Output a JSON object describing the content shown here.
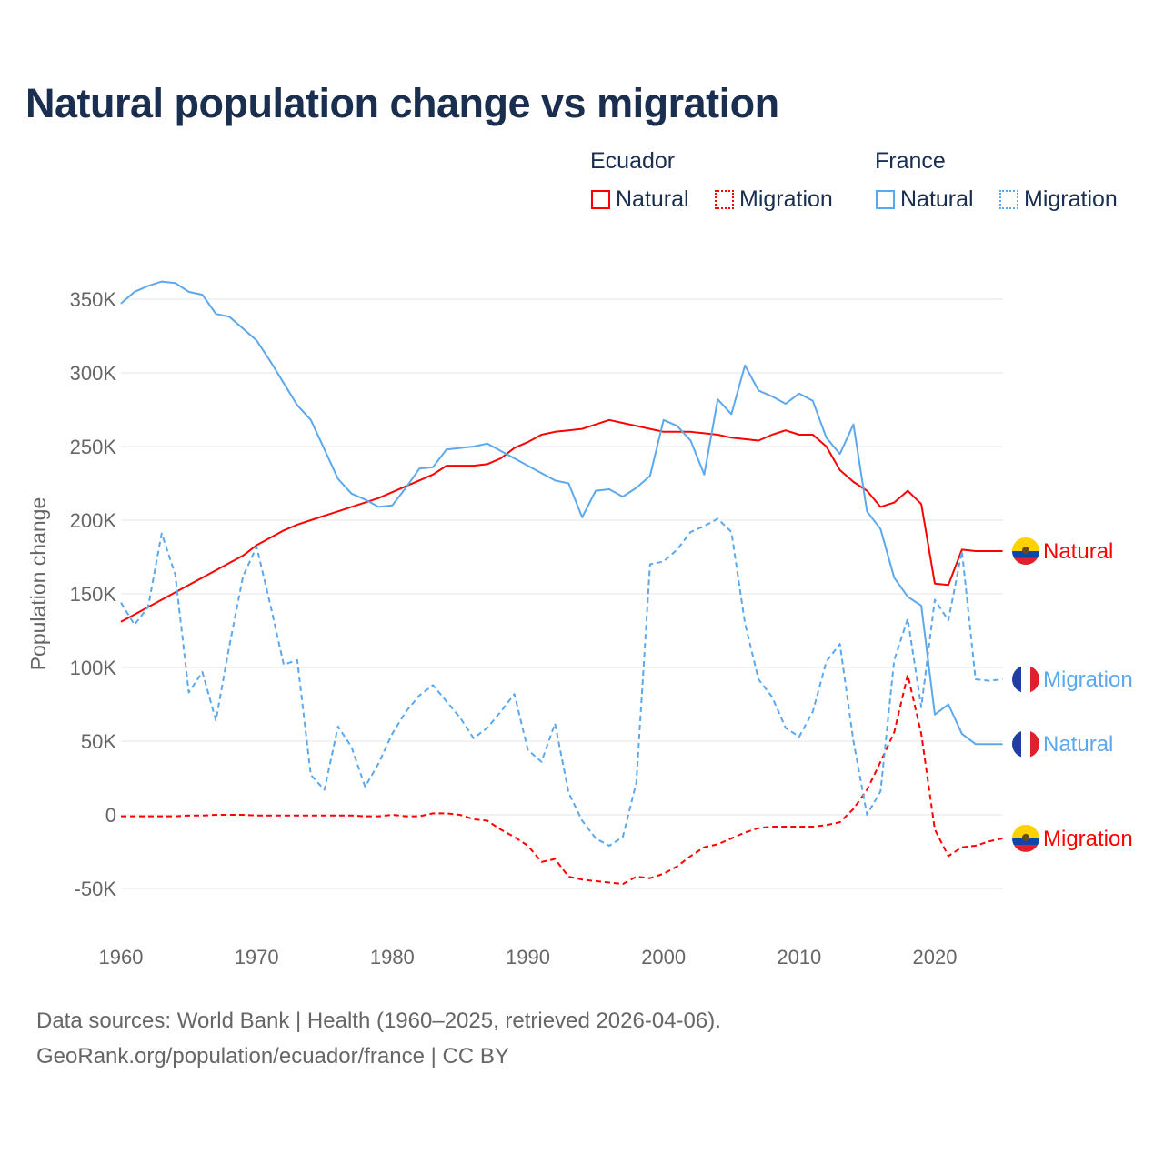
{
  "title": "Natural population change vs migration",
  "legend": {
    "groups": [
      {
        "country": "Ecuador",
        "items": [
          "Natural",
          "Migration"
        ]
      },
      {
        "country": "France",
        "items": [
          "Natural",
          "Migration"
        ]
      }
    ]
  },
  "footer": {
    "line1": "Data sources: World Bank | Health (1960–2025, retrieved 2026-04-06).",
    "line2": "GeoRank.org/population/ecuador/france | CC BY"
  },
  "colors": {
    "ecuador": "#ff0000",
    "france": "#5ca8ec"
  },
  "chart_data": {
    "type": "line",
    "title": "Natural population change vs migration",
    "xlabel": "",
    "ylabel": "Population change",
    "xlim": [
      1960,
      2025
    ],
    "ylim": [
      -70000,
      380000
    ],
    "x_ticks": [
      1960,
      1970,
      1980,
      1990,
      2000,
      2010,
      2020
    ],
    "x_tick_labels": [
      "1960",
      "1970",
      "1980",
      "1990",
      "2000",
      "2010",
      "2020"
    ],
    "y_ticks": [
      -50000,
      0,
      50000,
      100000,
      150000,
      200000,
      250000,
      300000,
      350000
    ],
    "y_tick_labels": [
      "-50K",
      "0",
      "50K",
      "100K",
      "150K",
      "200K",
      "250K",
      "300K",
      "350K"
    ],
    "grid": true,
    "x_start": 1960,
    "series": [
      {
        "name": "Ecuador Natural",
        "country": "ecuador",
        "end_label": "Natural",
        "style": "solid",
        "values_k": [
          131,
          136,
          141,
          146,
          151,
          156,
          161,
          166,
          171,
          176,
          183,
          188,
          193,
          197,
          200,
          203,
          206,
          209,
          212,
          215,
          219,
          223,
          227,
          231,
          237,
          237,
          237,
          238,
          242,
          249,
          253,
          258,
          260,
          261,
          262,
          265,
          268,
          266,
          264,
          262,
          260,
          260,
          260,
          259,
          258,
          256,
          255,
          254,
          258,
          261,
          258,
          258,
          250,
          234,
          226,
          220,
          209,
          212,
          220,
          211,
          157,
          156,
          180,
          179,
          179,
          179
        ]
      },
      {
        "name": "Ecuador Migration",
        "country": "ecuador",
        "end_label": "Migration",
        "style": "dashed",
        "values_k": [
          -1,
          -1,
          -1,
          -1,
          -1,
          -0.5,
          -0.5,
          0,
          0,
          0,
          -0.5,
          -0.5,
          -0.5,
          -0.5,
          -0.5,
          -0.5,
          -0.5,
          -0.5,
          -1,
          -1,
          0,
          -1,
          -1,
          1,
          1,
          0,
          -3,
          -4,
          -10,
          -15,
          -21,
          -32,
          -30,
          -42,
          -44,
          -45,
          -46,
          -47,
          -42,
          -43,
          -40,
          -35,
          -28,
          -22,
          -20,
          -16,
          -12,
          -9,
          -8,
          -8,
          -8,
          -8,
          -7,
          -5,
          4,
          17,
          36,
          56,
          95,
          55,
          -10,
          -28,
          -22,
          -21,
          -18,
          -16
        ]
      },
      {
        "name": "France Natural",
        "country": "france",
        "end_label": "Natural",
        "style": "solid",
        "values_k": [
          347,
          355,
          359,
          362,
          361,
          355,
          353,
          340,
          338,
          330,
          322,
          308,
          293,
          278,
          268,
          248,
          228,
          218,
          214,
          209,
          210,
          222,
          235,
          236,
          248,
          249,
          250,
          252,
          247,
          242,
          237,
          232,
          227,
          225,
          202,
          220,
          221,
          216,
          222,
          230,
          268,
          264,
          254,
          231,
          282,
          272,
          305,
          288,
          284,
          279,
          286,
          281,
          256,
          245,
          265,
          206,
          194,
          161,
          148,
          142,
          68,
          75,
          55,
          48,
          48,
          48
        ]
      },
      {
        "name": "France Migration",
        "country": "france",
        "end_label": "Migration",
        "style": "dashed",
        "values_k": [
          144,
          129,
          141,
          191,
          163,
          83,
          97,
          64,
          115,
          162,
          182,
          143,
          102,
          105,
          27,
          17,
          60,
          46,
          19,
          35,
          55,
          70,
          81,
          88,
          77,
          66,
          52,
          59,
          70,
          82,
          44,
          36,
          62,
          15,
          -4,
          -16,
          -21,
          -15,
          22,
          170,
          172,
          180,
          192,
          196,
          201,
          192,
          130,
          92,
          80,
          59,
          53,
          70,
          104,
          116,
          50,
          0,
          16,
          105,
          133,
          73,
          146,
          132,
          179,
          92,
          91,
          92
        ]
      }
    ]
  }
}
